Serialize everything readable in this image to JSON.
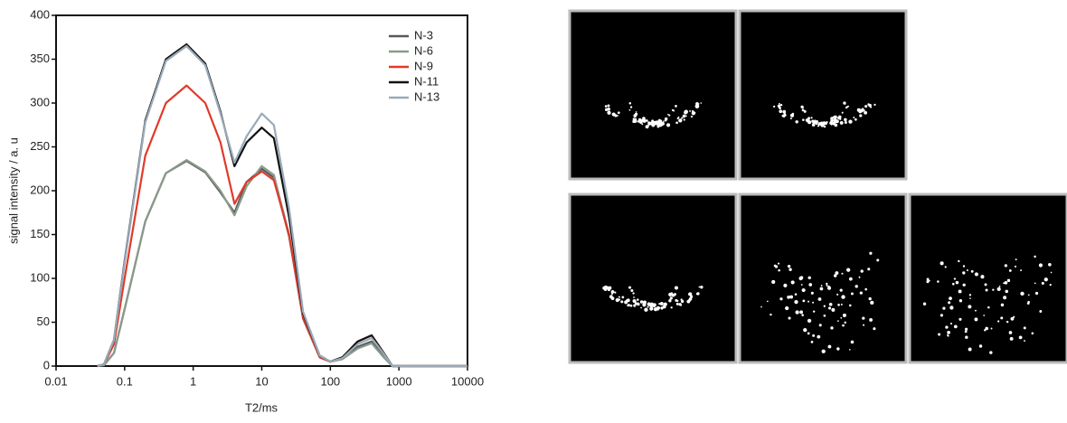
{
  "chart_data": {
    "type": "line",
    "x_label": "T2/ms",
    "y_label": "signal intensity / a. u",
    "xscale": "log",
    "xlim": [
      0.01,
      10000
    ],
    "xticks": [
      0.01,
      0.1,
      1,
      10,
      100,
      1000,
      10000
    ],
    "ylim": [
      0,
      400
    ],
    "yticks": [
      0,
      50,
      100,
      150,
      200,
      250,
      300,
      350,
      400
    ],
    "legend": "upper right",
    "x": [
      0.04,
      0.05,
      0.07,
      0.1,
      0.2,
      0.4,
      0.8,
      1.5,
      2.5,
      4,
      6,
      10,
      15,
      25,
      40,
      70,
      100,
      150,
      250,
      400,
      600,
      800,
      1000,
      10000
    ],
    "series": [
      {
        "name": "N-3",
        "color": "#555a60",
        "values": [
          0,
          1,
          15,
          65,
          165,
          220,
          234,
          221,
          198,
          175,
          210,
          225,
          215,
          148,
          54,
          10,
          5,
          8,
          22,
          28,
          12,
          0,
          0,
          0
        ]
      },
      {
        "name": "N-6",
        "color": "#8a9a8a",
        "values": [
          0,
          1,
          15,
          65,
          165,
          220,
          235,
          222,
          200,
          172,
          205,
          228,
          218,
          150,
          55,
          10,
          5,
          8,
          20,
          26,
          10,
          0,
          0,
          0
        ]
      },
      {
        "name": "N-9",
        "color": "#e03a2a",
        "values": [
          0,
          2,
          25,
          100,
          240,
          300,
          320,
          300,
          255,
          185,
          210,
          222,
          212,
          150,
          55,
          10,
          5,
          10,
          28,
          35,
          15,
          0,
          0,
          0
        ]
      },
      {
        "name": "N-11",
        "color": "#111111",
        "values": [
          0,
          2,
          30,
          120,
          280,
          350,
          367,
          345,
          290,
          228,
          255,
          272,
          260,
          170,
          60,
          12,
          5,
          10,
          28,
          35,
          15,
          0,
          0,
          0
        ]
      },
      {
        "name": "N-13",
        "color": "#9aaab8",
        "values": [
          0,
          2,
          30,
          118,
          278,
          348,
          365,
          343,
          288,
          232,
          262,
          288,
          275,
          180,
          62,
          12,
          5,
          9,
          25,
          32,
          14,
          0,
          0,
          0
        ]
      }
    ]
  }
}
